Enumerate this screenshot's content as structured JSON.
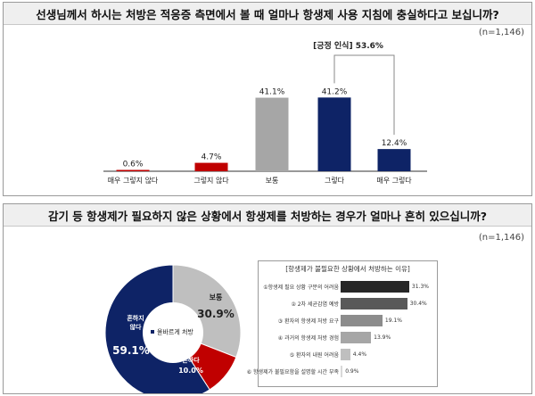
{
  "chart_data": [
    {
      "type": "bar",
      "title": "선생님께서 하시는 처방은 적응증 측면에서 볼 때 얼마나 항생제 사용 지침에 충실하다고 보십니까?",
      "n_label": "(n=1,146)",
      "categories": [
        "매우 그렇지 않다",
        "그렇지 않다",
        "보통",
        "그렇다",
        "매우 그렇다"
      ],
      "values": [
        0.6,
        4.7,
        41.1,
        41.2,
        12.4
      ],
      "value_labels": [
        "0.6%",
        "4.7%",
        "41.1%",
        "41.2%",
        "12.4%"
      ],
      "colors": [
        "#c00000",
        "#c00000",
        "#a6a6a6",
        "#0e2366",
        "#0e2366"
      ],
      "ylim": [
        0,
        50
      ],
      "annotation": "[긍정 인식] 53.6%"
    },
    {
      "type": "pie",
      "title": "감기 등 항생제가 필요하지 않은 상황에서 항생제를 처방하는 경우가 얼마나 흔히 있으십니까?",
      "n_label": "(n=1,146)",
      "center_label": "올바르게 처방",
      "slices": [
        {
          "name": "보통",
          "value": 30.9,
          "value_label": "30.9%",
          "color": "#bfbfbf"
        },
        {
          "name": "흔하다",
          "value": 10.0,
          "value_label": "10.0%",
          "color": "#c00000"
        },
        {
          "name": "흔하지 않다",
          "value": 59.1,
          "value_label": "59.1%",
          "color": "#0e2366"
        }
      ]
    },
    {
      "type": "bar",
      "orientation": "horizontal",
      "title": "[항생제가 불필요한 상황에서 처방하는 이유]",
      "categories": [
        "①항생제 필요 상황 구분의 어려움",
        "② 2차 세균감염 예방",
        "③ 환자의 항생제 처방 요구",
        "④ 과거의 항생제 처방 경험",
        "⑤ 환자의 내원 어려움",
        "⑥ 항생제가 불필요함을 설명할 시간 부족"
      ],
      "values": [
        31.3,
        30.4,
        19.1,
        13.9,
        4.4,
        0.9
      ],
      "value_labels": [
        "31.3%",
        "30.4%",
        "19.1%",
        "13.9%",
        "4.4%",
        "0.9%"
      ],
      "colors": [
        "#262626",
        "#595959",
        "#8c8c8c",
        "#a6a6a6",
        "#bfbfbf",
        "#d9d9d9"
      ],
      "xlim": [
        0,
        35
      ]
    }
  ]
}
